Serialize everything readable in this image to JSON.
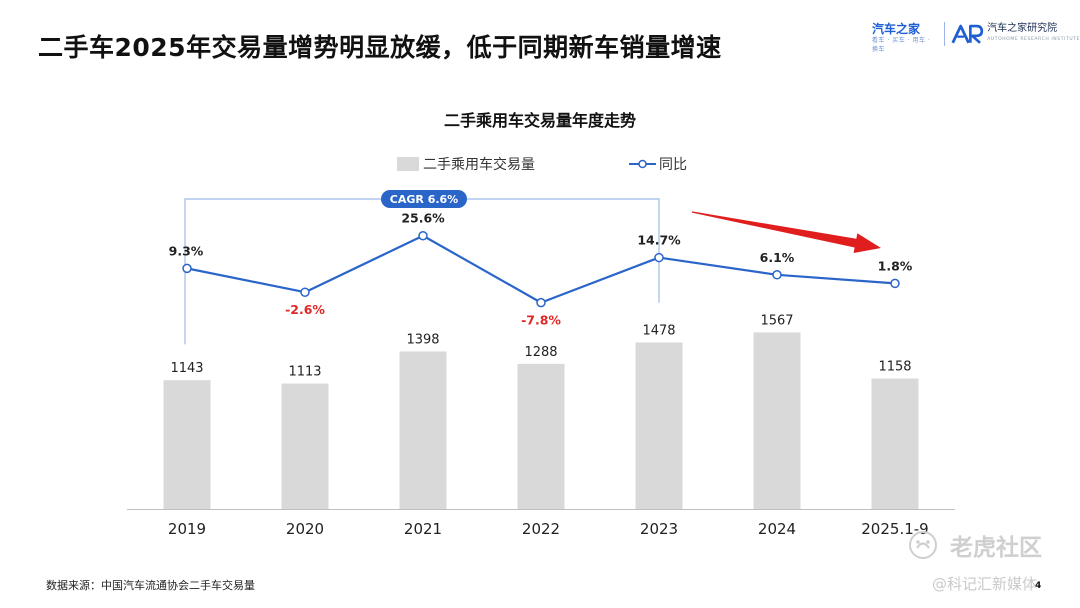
{
  "slide": {
    "title": "二手车2025年交易量增势明显放缓，低于同期新车销量增速",
    "page_number": "4",
    "source": "数据来源：中国汽车流通协会二手车交易量"
  },
  "brand": {
    "autohome": {
      "name": "汽车之家",
      "tagline": "看车 · 买车 · 用车 · 换车"
    },
    "research": {
      "logo": "AR",
      "name": "汽车之家研究院",
      "tagline": "AUTOHOME RESEARCH INSTITUTE"
    }
  },
  "watermark": {
    "primary": "老虎社区",
    "secondary": "@科记汇新媒体"
  },
  "colors": {
    "bar": "#d9d9d9",
    "line": "#2a65c9",
    "negative_label": "#e02828",
    "cagr_badge": "#2a65c9",
    "bracket": "#9bbbe9",
    "arrow": "#e01e1e"
  },
  "chart_data": {
    "type": "bar+line",
    "title": "二手乘用车交易量年度走势",
    "categories": [
      "2019",
      "2020",
      "2021",
      "2022",
      "2023",
      "2024",
      "2025.1-9"
    ],
    "series": [
      {
        "name": "二手乘用车交易量",
        "type": "bar",
        "values": [
          1143,
          1113,
          1398,
          1288,
          1478,
          1567,
          1158
        ],
        "labels": [
          "1143",
          "1113",
          "1398",
          "1288",
          "1478",
          "1567",
          "1158"
        ]
      },
      {
        "name": "同比",
        "type": "line",
        "values": [
          9.3,
          -2.6,
          25.6,
          -7.8,
          14.7,
          6.1,
          1.8
        ],
        "labels": [
          "9.3%",
          "-2.6%",
          "25.6%",
          "-7.8%",
          "14.7%",
          "6.1%",
          "1.8%"
        ]
      }
    ],
    "legend": {
      "position": "top-center"
    },
    "annotations": {
      "cagr_label": "CAGR 6.6%",
      "cagr_from": "2019",
      "cagr_to": "2023",
      "trend_arrow": "downward trend 2024 → 2025.1-9"
    },
    "grid": false
  }
}
